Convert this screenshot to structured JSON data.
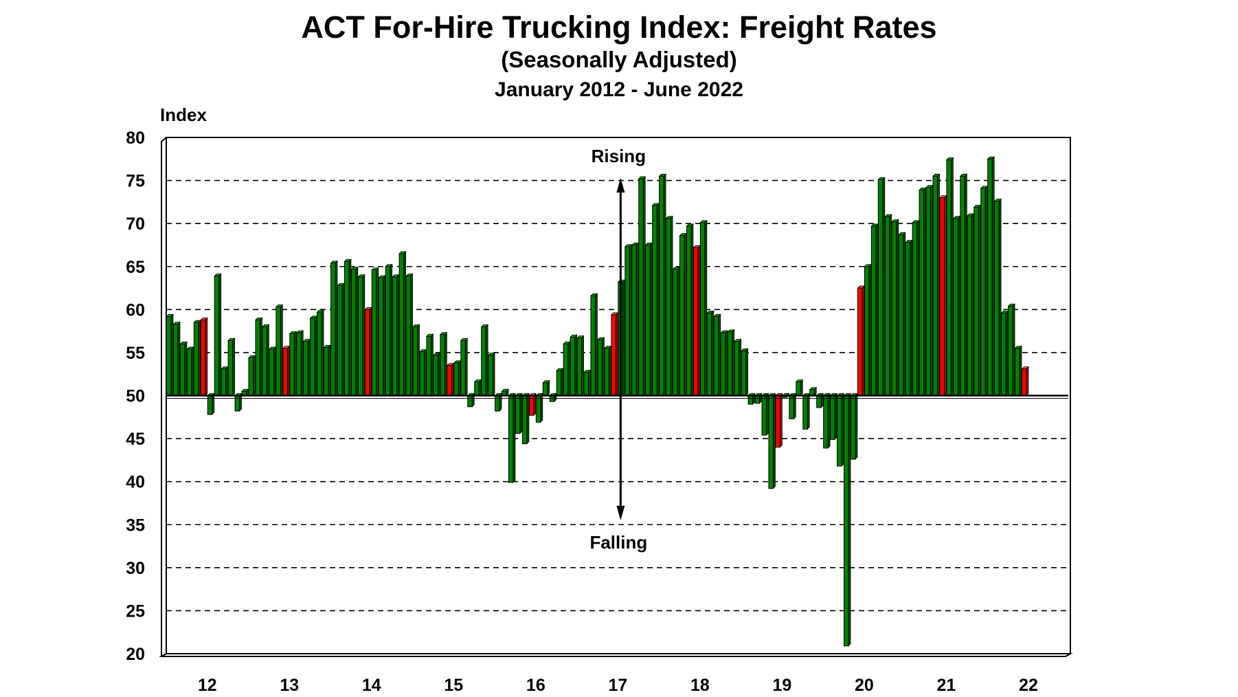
{
  "chart_data": {
    "type": "bar",
    "title": "ACT For-Hire Trucking Index: Freight Rates",
    "subtitle": "(Seasonally Adjusted)",
    "date_range": "January 2012 - June 2022",
    "ylabel": "Index",
    "ylim": [
      20,
      80
    ],
    "yticks": [
      20,
      25,
      30,
      35,
      40,
      45,
      50,
      55,
      60,
      65,
      70,
      75,
      80
    ],
    "baseline": 50,
    "grid": true,
    "x_tick_labels": [
      "12",
      "13",
      "14",
      "15",
      "16",
      "17",
      "18",
      "19",
      "20",
      "21",
      "22"
    ],
    "start": "2012-01",
    "end": "2022-06",
    "frequency": "monthly",
    "highlight_month": "June",
    "colors": {
      "bar": "#008000",
      "highlight": "#ff0000"
    },
    "annotations": {
      "rising": "Rising",
      "falling": "Falling"
    },
    "values": [
      59.2,
      58.3,
      56.0,
      55.4,
      58.5,
      58.8,
      47.8,
      63.9,
      53.1,
      56.4,
      48.2,
      50.5,
      54.4,
      58.8,
      58.0,
      55.4,
      60.3,
      55.5,
      57.2,
      57.3,
      56.3,
      59.0,
      59.7,
      55.6,
      65.4,
      62.8,
      65.6,
      64.7,
      63.8,
      60.0,
      64.6,
      63.7,
      65.0,
      63.8,
      66.5,
      63.9,
      58.0,
      55.1,
      56.9,
      54.7,
      57.1,
      53.5,
      53.8,
      56.4,
      48.7,
      51.6,
      58.0,
      54.7,
      48.2,
      50.5,
      39.9,
      45.6,
      44.4,
      47.7,
      46.9,
      51.5,
      49.3,
      52.9,
      56.0,
      56.8,
      56.7,
      52.7,
      61.6,
      56.5,
      55.5,
      59.4,
      63.2,
      67.3,
      67.5,
      75.2,
      67.5,
      72.1,
      75.5,
      70.6,
      64.7,
      68.6,
      69.7,
      67.2,
      70.1,
      59.6,
      59.2,
      57.3,
      57.4,
      56.3,
      55.2,
      49.0,
      49.1,
      45.4,
      39.2,
      44.0,
      49.8,
      47.3,
      51.6,
      46.1,
      50.7,
      48.6,
      43.9,
      44.9,
      41.8,
      20.9,
      42.6,
      62.5,
      65.0,
      69.7,
      75.1,
      70.8,
      70.2,
      68.7,
      67.8,
      70.1,
      73.9,
      74.2,
      75.5,
      73.0,
      77.4,
      70.6,
      75.5,
      70.9,
      71.9,
      74.1,
      77.5,
      72.6,
      59.6,
      60.4,
      55.5,
      53.1
    ]
  }
}
